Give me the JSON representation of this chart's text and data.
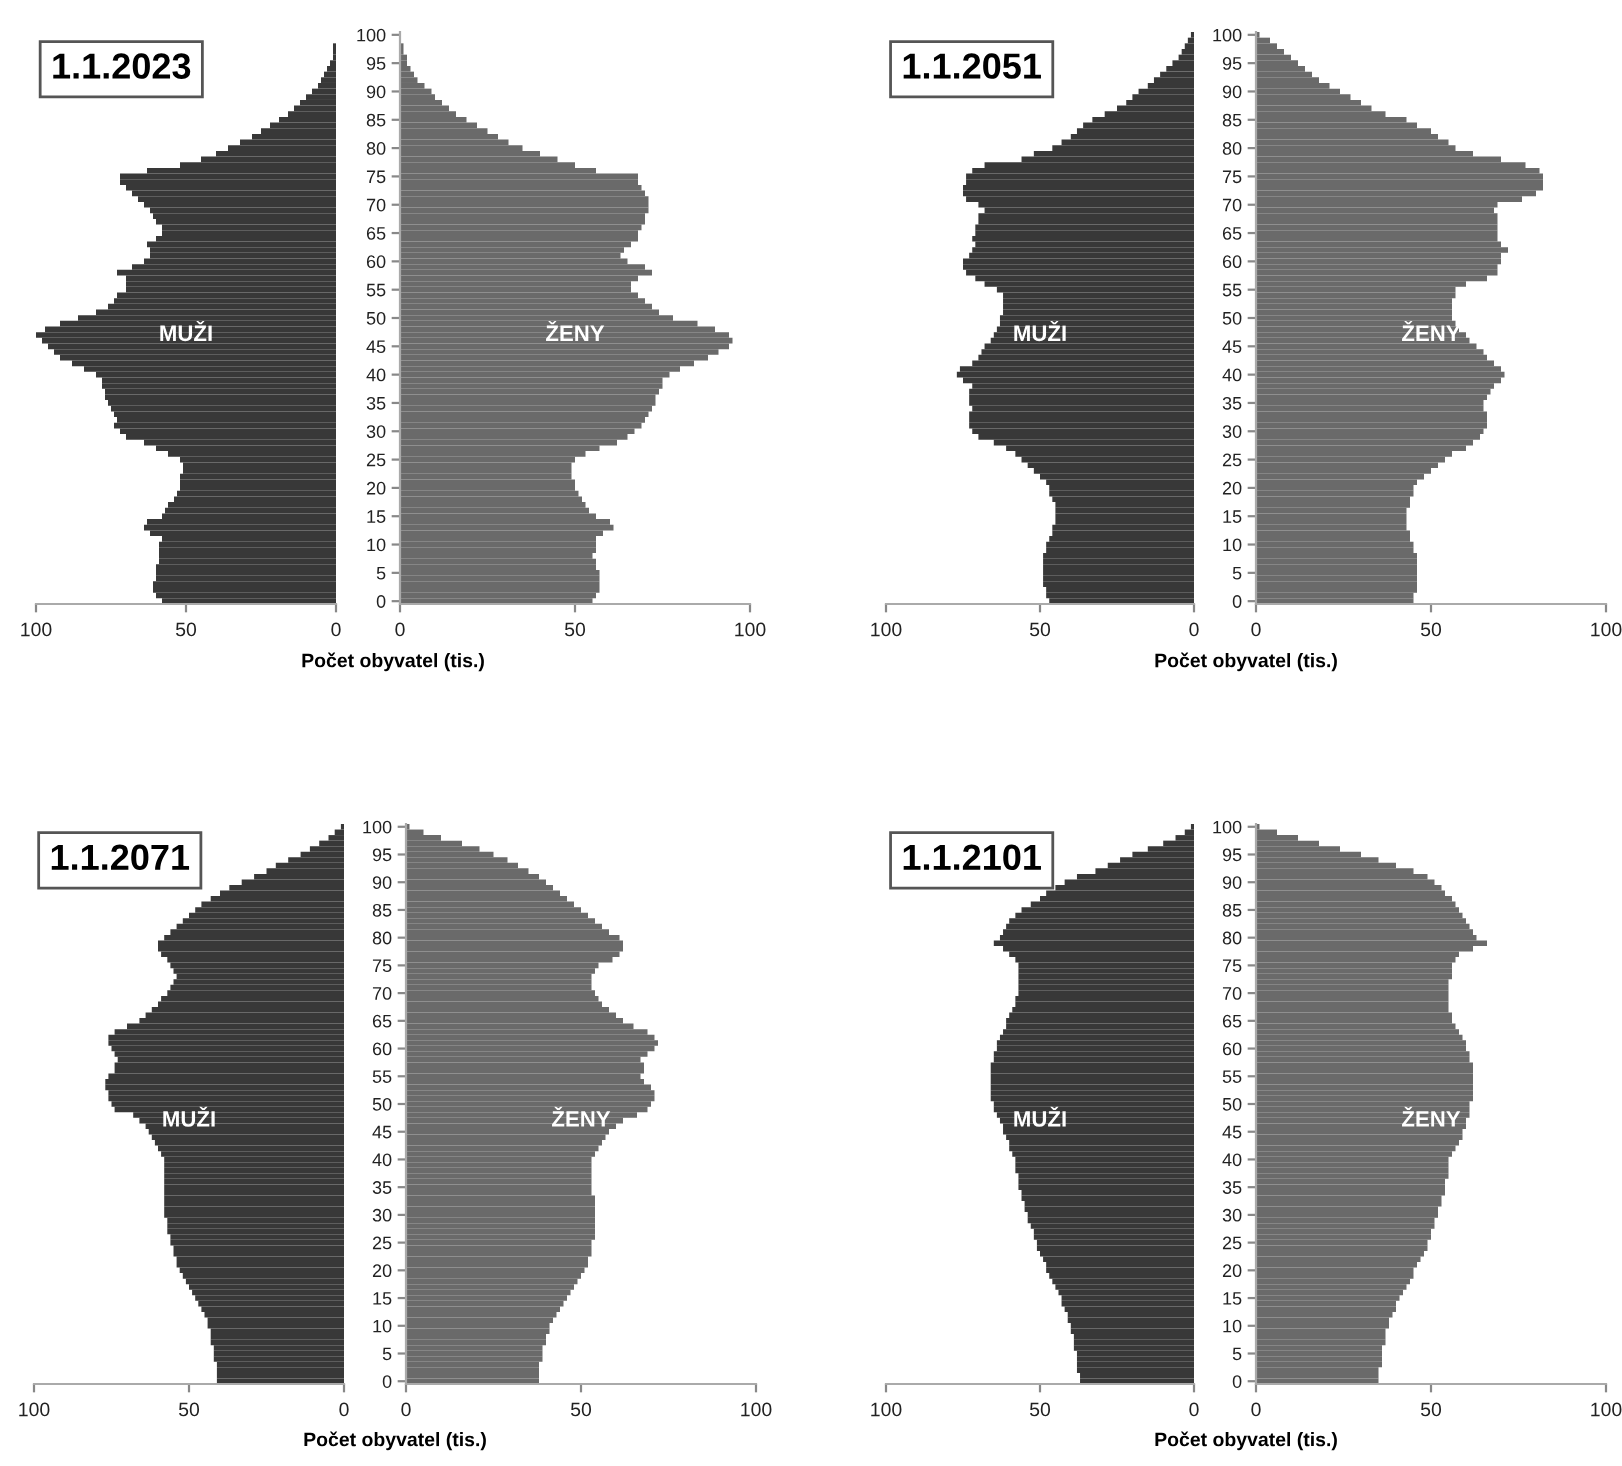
{
  "chart_data": [
    {
      "type": "bar",
      "orientation": "horizontal",
      "title": "1.1.2023",
      "annotations": [
        "MUŽI"
      ],
      "tick_labels": "x",
      "xlim": [
        100,
        0
      ],
      "xticks": [
        100,
        50,
        0
      ],
      "categories": [
        "100",
        null,
        null,
        null,
        null,
        "95",
        null,
        null,
        null,
        null,
        "90",
        null,
        null,
        null,
        null,
        "85",
        null,
        null,
        null,
        null,
        "80",
        null,
        null,
        null,
        null,
        "75",
        null,
        null,
        null,
        null,
        "70",
        null,
        null,
        null,
        null,
        "65",
        null,
        null,
        null,
        null,
        "60",
        null,
        null,
        null,
        null,
        "55",
        null,
        null,
        null,
        null,
        "50",
        null,
        null,
        null,
        null,
        "45",
        null,
        null,
        null,
        null,
        "40",
        null,
        null,
        null,
        null,
        "35",
        null,
        null,
        null,
        null,
        "30",
        null,
        null,
        null,
        null,
        "25",
        null,
        null,
        null,
        null,
        "20",
        null,
        null,
        null,
        null,
        "15",
        null,
        null,
        null,
        null,
        "10",
        null,
        null,
        null,
        null,
        "5",
        null,
        null,
        null,
        null,
        "0"
      ],
      "series": [
        {
          "color": "#383838",
          "values": [
            0,
            0,
            1,
            1,
            1,
            2,
            3,
            4,
            5,
            6,
            8,
            10,
            12,
            14,
            16,
            19,
            22,
            25,
            28,
            32,
            36,
            40,
            45,
            52,
            63,
            72,
            72,
            70,
            68,
            66,
            64,
            62,
            61,
            60,
            58,
            58,
            60,
            63,
            62,
            62,
            64,
            68,
            73,
            70,
            70,
            70,
            73,
            74,
            76,
            80,
            86,
            92,
            97,
            100,
            98,
            96,
            94,
            92,
            88,
            84,
            80,
            78,
            78,
            77,
            77,
            76,
            75,
            74,
            73,
            74,
            72,
            70,
            64,
            60,
            56,
            52,
            51,
            51,
            52,
            52,
            52,
            53,
            54,
            56,
            57,
            58,
            63,
            64,
            62,
            58,
            59,
            59,
            59,
            59,
            60,
            60,
            60,
            61,
            61,
            60,
            58
          ]
        }
      ]
    },
    {
      "type": "bar",
      "orientation": "horizontal",
      "xlabel": "Počet obyvatel (tis.)",
      "annotations": [
        "ŽENY"
      ],
      "xlim": [
        0,
        100
      ],
      "xticks": [
        0,
        50,
        100
      ],
      "categories": [
        "100",
        null,
        null,
        null,
        null,
        "95",
        null,
        null,
        null,
        null,
        "90",
        null,
        null,
        null,
        null,
        "85",
        null,
        null,
        null,
        null,
        "80",
        null,
        null,
        null,
        null,
        "75",
        null,
        null,
        null,
        null,
        "70",
        null,
        null,
        null,
        null,
        "65",
        null,
        null,
        null,
        null,
        "60",
        null,
        null,
        null,
        null,
        "55",
        null,
        null,
        null,
        null,
        "50",
        null,
        null,
        null,
        null,
        "45",
        null,
        null,
        null,
        null,
        "40",
        null,
        null,
        null,
        null,
        "35",
        null,
        null,
        null,
        null,
        "30",
        null,
        null,
        null,
        null,
        "25",
        null,
        null,
        null,
        null,
        "20",
        null,
        null,
        null,
        null,
        "15",
        null,
        null,
        null,
        null,
        "10",
        null,
        null,
        null,
        null,
        "5",
        null,
        null,
        null,
        null,
        "0"
      ],
      "series": [
        {
          "color": "#6a6a6a",
          "values": [
            0,
            0,
            1,
            1,
            2,
            2,
            3,
            4,
            5,
            7,
            9,
            10,
            12,
            14,
            16,
            19,
            22,
            25,
            28,
            31,
            35,
            40,
            45,
            50,
            56,
            68,
            68,
            69,
            70,
            71,
            71,
            71,
            70,
            70,
            69,
            68,
            68,
            66,
            64,
            63,
            65,
            70,
            72,
            68,
            66,
            66,
            68,
            70,
            72,
            74,
            78,
            85,
            90,
            94,
            95,
            94,
            91,
            88,
            84,
            80,
            77,
            75,
            75,
            74,
            73,
            73,
            72,
            71,
            70,
            69,
            67,
            65,
            62,
            57,
            53,
            50,
            49,
            49,
            49,
            50,
            50,
            51,
            52,
            53,
            54,
            56,
            60,
            61,
            58,
            56,
            56,
            56,
            55,
            56,
            56,
            57,
            57,
            57,
            57,
            56,
            55
          ]
        }
      ]
    },
    {
      "type": "bar",
      "orientation": "horizontal",
      "title": "1.1.2051",
      "annotations": [
        "MUŽI"
      ],
      "tick_labels": "x",
      "xlim": [
        100,
        0
      ],
      "xticks": [
        100,
        50,
        0
      ],
      "categories": [
        "100",
        null,
        null,
        null,
        null,
        "95",
        null,
        null,
        null,
        null,
        "90",
        null,
        null,
        null,
        null,
        "85",
        null,
        null,
        null,
        null,
        "80",
        null,
        null,
        null,
        null,
        "75",
        null,
        null,
        null,
        null,
        "70",
        null,
        null,
        null,
        null,
        "65",
        null,
        null,
        null,
        null,
        "60",
        null,
        null,
        null,
        null,
        "55",
        null,
        null,
        null,
        null,
        "50",
        null,
        null,
        null,
        null,
        "45",
        null,
        null,
        null,
        null,
        "40",
        null,
        null,
        null,
        null,
        "35",
        null,
        null,
        null,
        null,
        "30",
        null,
        null,
        null,
        null,
        "25",
        null,
        null,
        null,
        null,
        "20",
        null,
        null,
        null,
        null,
        "15",
        null,
        null,
        null,
        null,
        "10",
        null,
        null,
        null,
        null,
        "5",
        null,
        null,
        null,
        null,
        "0"
      ],
      "series": [
        {
          "color": "#383838",
          "values": [
            1,
            2,
            3,
            4,
            5,
            7,
            9,
            11,
            13,
            15,
            18,
            20,
            22,
            25,
            29,
            33,
            36,
            38,
            40,
            43,
            46,
            52,
            56,
            68,
            72,
            74,
            74,
            75,
            75,
            74,
            70,
            68,
            70,
            70,
            71,
            71,
            72,
            71,
            72,
            73,
            75,
            75,
            74,
            71,
            68,
            64,
            62,
            62,
            62,
            62,
            63,
            63,
            64,
            65,
            66,
            68,
            69,
            70,
            72,
            76,
            77,
            75,
            72,
            73,
            73,
            73,
            72,
            73,
            73,
            73,
            72,
            70,
            65,
            61,
            58,
            56,
            54,
            52,
            50,
            48,
            47,
            47,
            46,
            45,
            45,
            45,
            45,
            46,
            46,
            47,
            48,
            48,
            49,
            49,
            49,
            49,
            49,
            49,
            48,
            48,
            47
          ]
        }
      ]
    },
    {
      "type": "bar",
      "orientation": "horizontal",
      "xlabel": "Počet obyvatel (tis.)",
      "annotations": [
        "ŽENY"
      ],
      "xlim": [
        0,
        100
      ],
      "xticks": [
        0,
        50,
        100
      ],
      "categories": [
        "100",
        null,
        null,
        null,
        null,
        "95",
        null,
        null,
        null,
        null,
        "90",
        null,
        null,
        null,
        null,
        "85",
        null,
        null,
        null,
        null,
        "80",
        null,
        null,
        null,
        null,
        "75",
        null,
        null,
        null,
        null,
        "70",
        null,
        null,
        null,
        null,
        "65",
        null,
        null,
        null,
        null,
        "60",
        null,
        null,
        null,
        null,
        "55",
        null,
        null,
        null,
        null,
        "50",
        null,
        null,
        null,
        null,
        "45",
        null,
        null,
        null,
        null,
        "40",
        null,
        null,
        null,
        null,
        "35",
        null,
        null,
        null,
        null,
        "30",
        null,
        null,
        null,
        null,
        "25",
        null,
        null,
        null,
        null,
        "20",
        null,
        null,
        null,
        null,
        "15",
        null,
        null,
        null,
        null,
        "10",
        null,
        null,
        null,
        null,
        "5",
        null,
        null,
        null,
        null,
        "0"
      ],
      "series": [
        {
          "color": "#6a6a6a",
          "values": [
            1,
            4,
            6,
            8,
            10,
            12,
            14,
            16,
            18,
            21,
            24,
            27,
            30,
            33,
            37,
            43,
            46,
            50,
            52,
            55,
            57,
            62,
            70,
            77,
            81,
            82,
            82,
            82,
            80,
            76,
            69,
            68,
            69,
            69,
            69,
            69,
            69,
            70,
            72,
            70,
            70,
            69,
            69,
            66,
            60,
            57,
            57,
            56,
            56,
            56,
            56,
            57,
            58,
            60,
            61,
            63,
            65,
            66,
            68,
            70,
            71,
            70,
            68,
            67,
            66,
            65,
            65,
            66,
            66,
            66,
            65,
            64,
            62,
            60,
            56,
            54,
            52,
            50,
            48,
            46,
            45,
            45,
            44,
            44,
            43,
            43,
            43,
            43,
            44,
            44,
            45,
            45,
            46,
            46,
            46,
            46,
            46,
            46,
            46,
            45,
            45
          ]
        }
      ]
    },
    {
      "type": "bar",
      "orientation": "horizontal",
      "title": "1.1.2071",
      "annotations": [
        "MUŽI"
      ],
      "tick_labels": "x",
      "xlim": [
        100,
        0
      ],
      "xticks": [
        100,
        50,
        0
      ],
      "categories": [
        "100",
        null,
        null,
        null,
        null,
        "95",
        null,
        null,
        null,
        null,
        "90",
        null,
        null,
        null,
        null,
        "85",
        null,
        null,
        null,
        null,
        "80",
        null,
        null,
        null,
        null,
        "75",
        null,
        null,
        null,
        null,
        "70",
        null,
        null,
        null,
        null,
        "65",
        null,
        null,
        null,
        null,
        "60",
        null,
        null,
        null,
        null,
        "55",
        null,
        null,
        null,
        null,
        "50",
        null,
        null,
        null,
        null,
        "45",
        null,
        null,
        null,
        null,
        "40",
        null,
        null,
        null,
        null,
        "35",
        null,
        null,
        null,
        null,
        "30",
        null,
        null,
        null,
        null,
        "25",
        null,
        null,
        null,
        null,
        "20",
        null,
        null,
        null,
        null,
        "15",
        null,
        null,
        null,
        null,
        "10",
        null,
        null,
        null,
        null,
        "5",
        null,
        null,
        null,
        null,
        "0"
      ],
      "series": [
        {
          "color": "#383838",
          "values": [
            1,
            3,
            5,
            8,
            11,
            14,
            18,
            22,
            25,
            29,
            33,
            37,
            40,
            43,
            46,
            48,
            50,
            52,
            54,
            56,
            58,
            60,
            60,
            59,
            57,
            56,
            55,
            54,
            55,
            56,
            57,
            59,
            60,
            62,
            64,
            66,
            70,
            74,
            76,
            76,
            75,
            74,
            73,
            74,
            74,
            76,
            77,
            77,
            76,
            76,
            75,
            74,
            68,
            66,
            64,
            63,
            62,
            61,
            60,
            59,
            58,
            58,
            58,
            58,
            58,
            58,
            58,
            58,
            58,
            58,
            58,
            57,
            57,
            57,
            56,
            56,
            55,
            55,
            54,
            54,
            53,
            52,
            51,
            50,
            49,
            48,
            47,
            46,
            45,
            44,
            44,
            43,
            43,
            43,
            42,
            42,
            42,
            41,
            41,
            41,
            41
          ]
        }
      ]
    },
    {
      "type": "bar",
      "orientation": "horizontal",
      "xlabel": "Počet obyvatel (tis.)",
      "annotations": [
        "ŽENY"
      ],
      "xlim": [
        0,
        100
      ],
      "xticks": [
        0,
        50,
        100
      ],
      "categories": [
        "100",
        null,
        null,
        null,
        null,
        "95",
        null,
        null,
        null,
        null,
        "90",
        null,
        null,
        null,
        null,
        "85",
        null,
        null,
        null,
        null,
        "80",
        null,
        null,
        null,
        null,
        "75",
        null,
        null,
        null,
        null,
        "70",
        null,
        null,
        null,
        null,
        "65",
        null,
        null,
        null,
        null,
        "60",
        null,
        null,
        null,
        null,
        "55",
        null,
        null,
        null,
        null,
        "50",
        null,
        null,
        null,
        null,
        "45",
        null,
        null,
        null,
        null,
        "40",
        null,
        null,
        null,
        null,
        "35",
        null,
        null,
        null,
        null,
        "30",
        null,
        null,
        null,
        null,
        "25",
        null,
        null,
        null,
        null,
        "20",
        null,
        null,
        null,
        null,
        "15",
        null,
        null,
        null,
        null,
        "10",
        null,
        null,
        null,
        null,
        "5",
        null,
        null,
        null,
        null,
        "0"
      ],
      "series": [
        {
          "color": "#6a6a6a",
          "values": [
            1,
            5,
            10,
            16,
            21,
            25,
            29,
            32,
            35,
            38,
            40,
            42,
            44,
            46,
            48,
            50,
            52,
            54,
            56,
            58,
            61,
            62,
            62,
            61,
            59,
            55,
            54,
            53,
            53,
            53,
            54,
            55,
            56,
            58,
            60,
            62,
            65,
            69,
            71,
            72,
            71,
            69,
            67,
            68,
            68,
            67,
            68,
            70,
            71,
            71,
            70,
            69,
            66,
            62,
            60,
            58,
            57,
            56,
            55,
            54,
            53,
            53,
            53,
            53,
            53,
            53,
            53,
            54,
            54,
            54,
            54,
            54,
            54,
            54,
            54,
            53,
            53,
            53,
            52,
            52,
            51,
            50,
            49,
            48,
            47,
            46,
            45,
            44,
            43,
            42,
            41,
            41,
            40,
            40,
            39,
            39,
            39,
            38,
            38,
            38,
            38
          ]
        }
      ]
    },
    {
      "type": "bar",
      "orientation": "horizontal",
      "title": "1.1.2101",
      "annotations": [
        "MUŽI"
      ],
      "tick_labels": "x",
      "xlim": [
        100,
        0
      ],
      "xticks": [
        100,
        50,
        0
      ],
      "categories": [
        "100",
        null,
        null,
        null,
        null,
        "95",
        null,
        null,
        null,
        null,
        "90",
        null,
        null,
        null,
        null,
        "85",
        null,
        null,
        null,
        null,
        "80",
        null,
        null,
        null,
        null,
        "75",
        null,
        null,
        null,
        null,
        "70",
        null,
        null,
        null,
        null,
        "65",
        null,
        null,
        null,
        null,
        "60",
        null,
        null,
        null,
        null,
        "55",
        null,
        null,
        null,
        null,
        "50",
        null,
        null,
        null,
        null,
        "45",
        null,
        null,
        null,
        null,
        "40",
        null,
        null,
        null,
        null,
        "35",
        null,
        null,
        null,
        null,
        "30",
        null,
        null,
        null,
        null,
        "25",
        null,
        null,
        null,
        null,
        "20",
        null,
        null,
        null,
        null,
        "15",
        null,
        null,
        null,
        null,
        "10",
        null,
        null,
        null,
        null,
        "5",
        null,
        null,
        null,
        null,
        "0"
      ],
      "series": [
        {
          "color": "#383838",
          "values": [
            1,
            3,
            6,
            10,
            15,
            20,
            24,
            28,
            32,
            38,
            42,
            45,
            48,
            50,
            53,
            56,
            58,
            60,
            61,
            62,
            63,
            65,
            62,
            60,
            58,
            57,
            57,
            57,
            57,
            57,
            57,
            58,
            58,
            59,
            60,
            61,
            61,
            62,
            63,
            64,
            64,
            65,
            65,
            66,
            66,
            66,
            66,
            66,
            66,
            66,
            65,
            65,
            64,
            63,
            62,
            62,
            61,
            60,
            60,
            59,
            58,
            58,
            58,
            57,
            57,
            57,
            56,
            56,
            55,
            55,
            54,
            54,
            53,
            52,
            52,
            51,
            51,
            50,
            49,
            48,
            48,
            47,
            46,
            45,
            44,
            43,
            43,
            42,
            41,
            41,
            40,
            40,
            39,
            39,
            39,
            38,
            38,
            38,
            38,
            37,
            37
          ]
        }
      ]
    },
    {
      "type": "bar",
      "orientation": "horizontal",
      "xlabel": "Počet obyvatel (tis.)",
      "annotations": [
        "ŽENY"
      ],
      "xlim": [
        0,
        100
      ],
      "xticks": [
        0,
        50,
        100
      ],
      "categories": [
        "100",
        null,
        null,
        null,
        null,
        "95",
        null,
        null,
        null,
        null,
        "90",
        null,
        null,
        null,
        null,
        "85",
        null,
        null,
        null,
        null,
        "80",
        null,
        null,
        null,
        null,
        "75",
        null,
        null,
        null,
        null,
        "70",
        null,
        null,
        null,
        null,
        "65",
        null,
        null,
        null,
        null,
        "60",
        null,
        null,
        null,
        null,
        "55",
        null,
        null,
        null,
        null,
        "50",
        null,
        null,
        null,
        null,
        "45",
        null,
        null,
        null,
        null,
        "40",
        null,
        null,
        null,
        null,
        "35",
        null,
        null,
        null,
        null,
        "30",
        null,
        null,
        null,
        null,
        "25",
        null,
        null,
        null,
        null,
        "20",
        null,
        null,
        null,
        null,
        "15",
        null,
        null,
        null,
        null,
        "10",
        null,
        null,
        null,
        null,
        "5",
        null,
        null,
        null,
        null,
        "0"
      ],
      "series": [
        {
          "color": "#6a6a6a",
          "values": [
            1,
            6,
            12,
            18,
            24,
            30,
            35,
            40,
            45,
            49,
            51,
            53,
            54,
            56,
            57,
            58,
            59,
            60,
            61,
            62,
            63,
            66,
            62,
            58,
            57,
            56,
            56,
            56,
            55,
            55,
            55,
            55,
            55,
            55,
            56,
            56,
            57,
            58,
            59,
            60,
            60,
            61,
            61,
            62,
            62,
            62,
            62,
            62,
            62,
            62,
            61,
            61,
            61,
            60,
            60,
            59,
            59,
            58,
            57,
            56,
            55,
            55,
            55,
            55,
            54,
            54,
            54,
            53,
            53,
            52,
            52,
            51,
            51,
            50,
            50,
            49,
            49,
            48,
            47,
            46,
            45,
            45,
            44,
            43,
            42,
            41,
            40,
            40,
            39,
            38,
            38,
            37,
            37,
            37,
            36,
            36,
            36,
            36,
            35,
            35,
            35
          ]
        }
      ]
    }
  ]
}
